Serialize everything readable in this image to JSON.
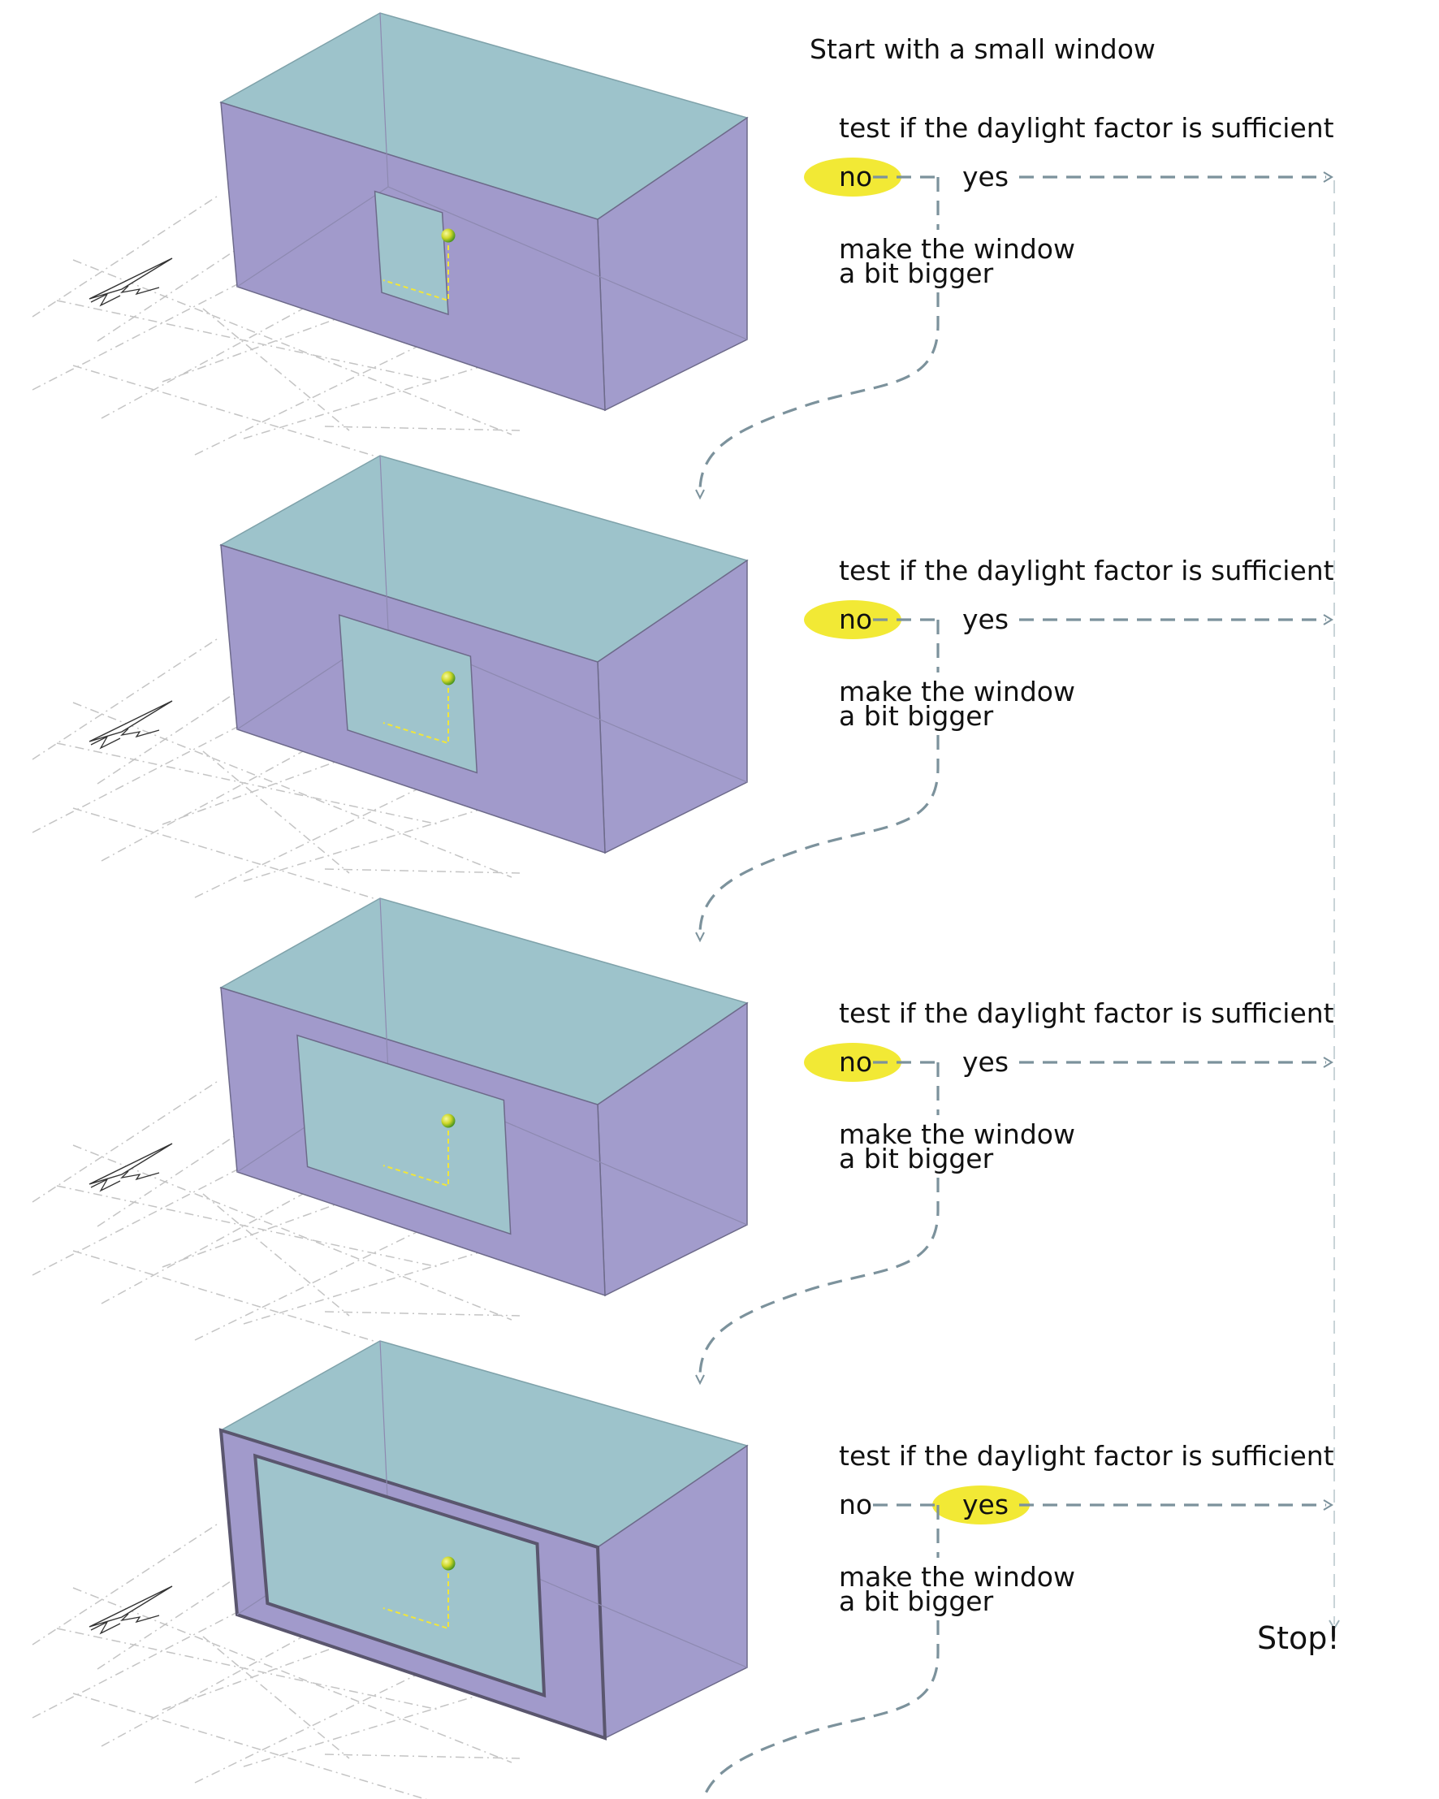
{
  "colors": {
    "box_top": "#9dc3cb",
    "box_front": "#a19acb",
    "box_side": "#a29ccc",
    "window": "#9fc4cc",
    "highlight": "#f2e935",
    "flow_line": "#7c929c",
    "sensor_point": "#d7e02a"
  },
  "start_label": "Start with a small window",
  "stop_label": "Stop!",
  "steps": [
    {
      "test": "test if the daylight factor is sufficient",
      "no": "no",
      "yes": "yes",
      "enlarge_line1": "make the window",
      "enlarge_line2": "a bit bigger",
      "highlighted": "no",
      "window_scale": 0.18
    },
    {
      "test": "test if the daylight factor is sufficient",
      "no": "no",
      "yes": "yes",
      "enlarge_line1": "make the window",
      "enlarge_line2": "a bit bigger",
      "highlighted": "no",
      "window_scale": 0.35
    },
    {
      "test": "test if the daylight factor is sufficient",
      "no": "no",
      "yes": "yes",
      "enlarge_line1": "make the window",
      "enlarge_line2": "a bit bigger",
      "highlighted": "no",
      "window_scale": 0.55
    },
    {
      "test": "test if the daylight factor is sufficient",
      "no": "no",
      "yes": "yes",
      "enlarge_line1": "make the window",
      "enlarge_line2": "a bit bigger",
      "highlighted": "yes",
      "window_scale": 0.75
    }
  ],
  "icons": {
    "north_arrow": "north-arrow-icon",
    "sensor": "sensor-point-icon"
  }
}
